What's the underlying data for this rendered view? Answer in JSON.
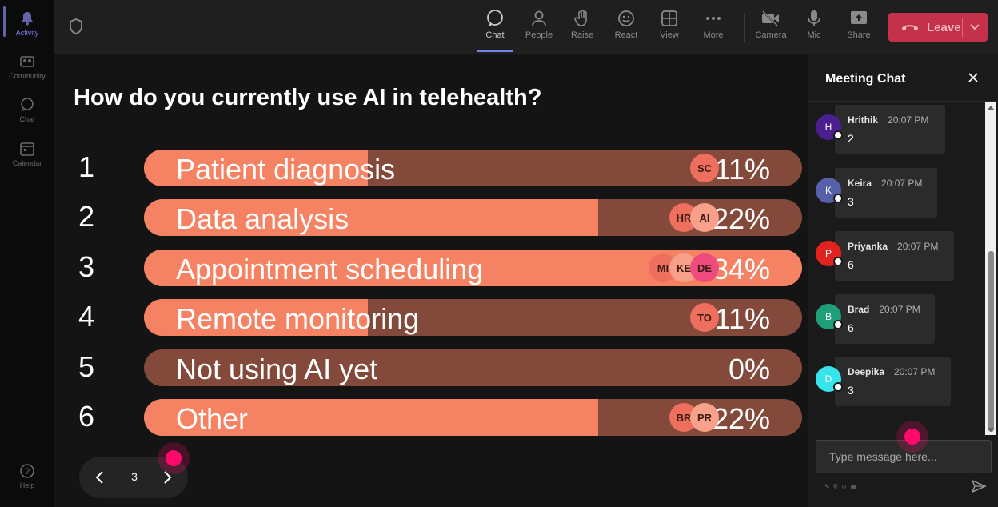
{
  "rail": {
    "items": [
      {
        "label": "Activity",
        "icon": "bell-icon"
      },
      {
        "label": "Community",
        "icon": "community-icon"
      },
      {
        "label": "Chat",
        "icon": "chat-icon"
      },
      {
        "label": "Calendar",
        "icon": "calendar-icon"
      },
      {
        "label": "Help",
        "icon": "help-icon"
      }
    ]
  },
  "toolbar": {
    "chat": "Chat",
    "people": "People",
    "raise": "Raise",
    "react": "React",
    "view": "View",
    "more": "More",
    "camera": "Camera",
    "mic": "Mic",
    "share": "Share",
    "leave": "Leave"
  },
  "poll": {
    "question": "How do you currently use AI in telehealth?",
    "options": [
      {
        "num": "1",
        "label": "Patient diagnosis",
        "pct": "11%",
        "value": 0.11,
        "avatars": [
          {
            "initials": "SC",
            "color": "#ef6f5f"
          }
        ]
      },
      {
        "num": "2",
        "label": "Data analysis",
        "pct": "22%",
        "value": 0.22,
        "avatars": [
          {
            "initials": "HR",
            "color": "#ef6f5f"
          },
          {
            "initials": "AI",
            "color": "#f8a08a"
          }
        ]
      },
      {
        "num": "3",
        "label": "Appointment scheduling",
        "pct": "34%",
        "value": 0.34,
        "avatars": [
          {
            "initials": "MI",
            "color": "#ef6f5f"
          },
          {
            "initials": "KE",
            "color": "#f8a08a"
          },
          {
            "initials": "DE",
            "color": "#ee4c7e"
          }
        ]
      },
      {
        "num": "4",
        "label": "Remote monitoring",
        "pct": "11%",
        "value": 0.11,
        "avatars": [
          {
            "initials": "TO",
            "color": "#ef6f5f"
          }
        ]
      },
      {
        "num": "5",
        "label": "Not using AI yet",
        "pct": "0%",
        "value": 0,
        "avatars": []
      },
      {
        "num": "6",
        "label": "Other",
        "pct": "22%",
        "value": 0.22,
        "avatars": [
          {
            "initials": "BR",
            "color": "#ef6f5f"
          },
          {
            "initials": "PR",
            "color": "#f8a08a"
          }
        ]
      }
    ],
    "fill_ratio": [
      0.34,
      0.69,
      1.0,
      0.34,
      0,
      0.69
    ]
  },
  "pager": {
    "page": "3"
  },
  "chat": {
    "title": "Meeting Chat",
    "messages": [
      {
        "initial": "H",
        "name": "Hrithik",
        "time": "20:07 PM",
        "text": "2",
        "color": "#4b1f8f"
      },
      {
        "initial": "K",
        "name": "Keira",
        "time": "20:07 PM",
        "text": "3",
        "color": "#5461a8"
      },
      {
        "initial": "P",
        "name": "Priyanka",
        "time": "20:07 PM",
        "text": "6",
        "color": "#e0231e"
      },
      {
        "initial": "B",
        "name": "Brad",
        "time": "20:07 PM",
        "text": "6",
        "color": "#1f9e7a"
      },
      {
        "initial": "D",
        "name": "Deepika",
        "time": "20:07 PM",
        "text": "3",
        "color": "#38e4ec"
      }
    ],
    "placeholder": "Type message here..."
  }
}
